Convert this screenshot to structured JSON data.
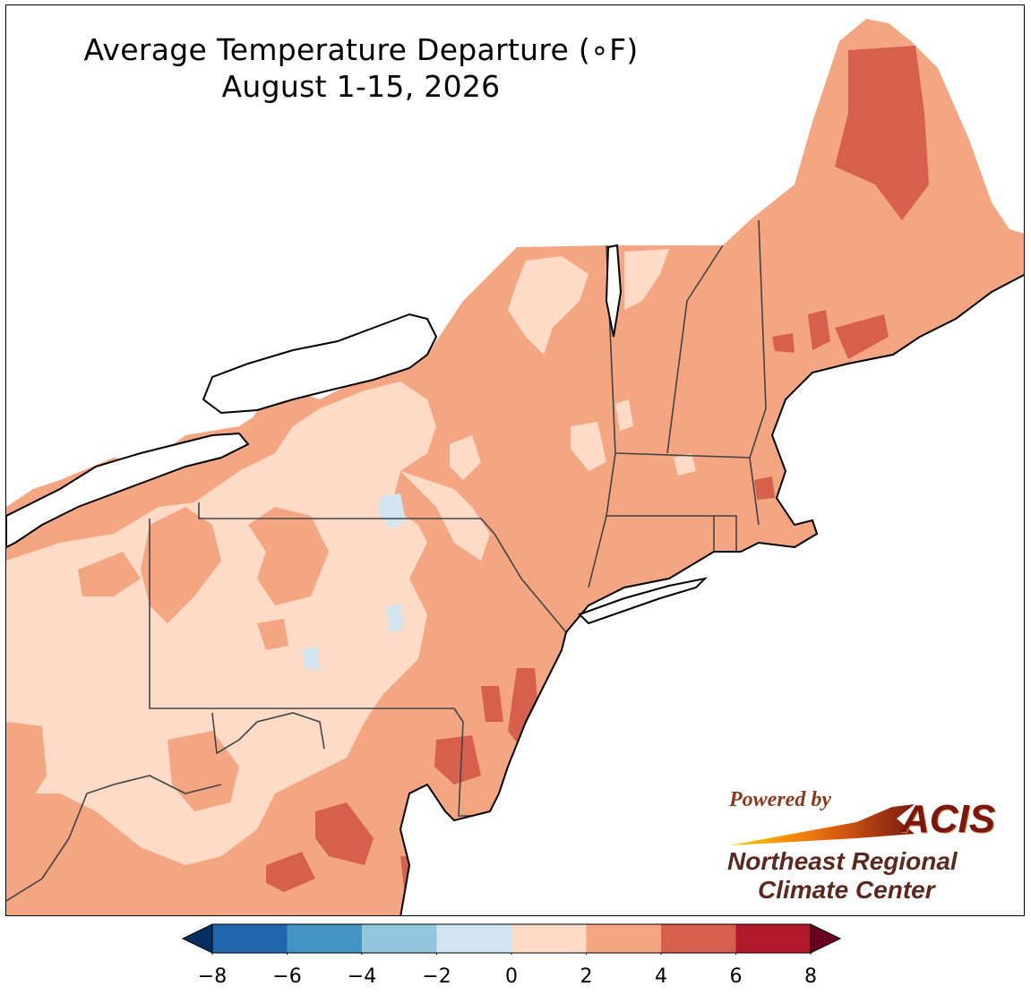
{
  "title": {
    "line1": "Average Temperature Departure (∘F)",
    "line2": "August 1-15, 2026"
  },
  "colorbar": {
    "ticks": [
      "−8",
      "−6",
      "−4",
      "−2",
      "0",
      "2",
      "4",
      "6",
      "8"
    ],
    "bins": [
      {
        "range": [
          -8,
          -6
        ],
        "color": "#2166ac"
      },
      {
        "range": [
          -6,
          -4
        ],
        "color": "#4393c3"
      },
      {
        "range": [
          -4,
          -2
        ],
        "color": "#92c5de"
      },
      {
        "range": [
          -2,
          0
        ],
        "color": "#d1e5f0"
      },
      {
        "range": [
          0,
          2
        ],
        "color": "#fddbc7"
      },
      {
        "range": [
          2,
          4
        ],
        "color": "#f4a582"
      },
      {
        "range": [
          4,
          6
        ],
        "color": "#d6604d"
      },
      {
        "range": [
          6,
          8
        ],
        "color": "#b2182b"
      }
    ],
    "under_color": "#053061",
    "over_color": "#67001f"
  },
  "logo": {
    "powered_by": "Powered by",
    "acis": "ACIS",
    "org_line1": "Northeast Regional",
    "org_line2": "Climate Center"
  },
  "map": {
    "water_color": "#ffffff",
    "boundary_color": "#000000",
    "county_color": "#b08878",
    "dominant_bin_color": "#f4a582"
  }
}
